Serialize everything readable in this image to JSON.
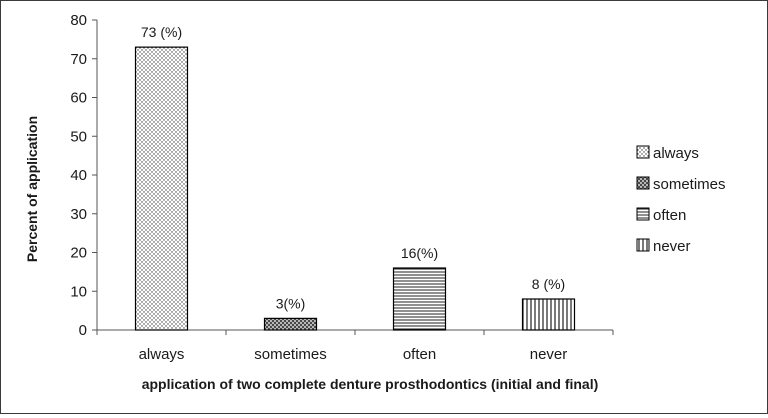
{
  "chart_data": {
    "type": "bar",
    "title": "",
    "xlabel": "application of two complete denture prosthodontics  (initial and final)",
    "ylabel": "Percent of application",
    "ylim": [
      0,
      80
    ],
    "yticks": [
      "0",
      "10",
      "20",
      "30",
      "40",
      "50",
      "60",
      "70",
      "80"
    ],
    "categories": [
      "always",
      "sometimes",
      "often",
      "never"
    ],
    "values": [
      73,
      3,
      16,
      8
    ],
    "data_labels": [
      "73  (%)",
      "3(%)",
      "16(%)",
      "8 (%)"
    ],
    "patterns": [
      "dots",
      "crosshatch",
      "horizontal-lines",
      "vertical-lines"
    ],
    "legend": {
      "position": "right",
      "entries": [
        "always",
        "sometimes",
        "often",
        "never"
      ]
    },
    "grid": false,
    "colors": {
      "bar_stroke": "#000000",
      "pattern": "#222222",
      "background": "#ffffff"
    }
  }
}
